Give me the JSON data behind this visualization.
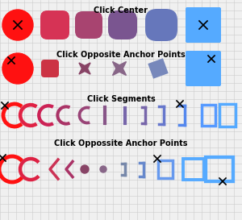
{
  "background_color": "#f0f0f0",
  "grid_color": "#cccccc",
  "title1": "Click Center",
  "title2": "Click Opposite Anchor Points",
  "title3": "Click Segments",
  "title4": "Click Oppossite Anchor Points",
  "row1_colors": [
    "#ff1111",
    "#d63355",
    "#a84470",
    "#7a5590",
    "#6677bb",
    "#55aaff"
  ],
  "row2_colors": [
    "#ff1111",
    "#cc3344",
    "#884466",
    "#886688",
    "#7788bb",
    "#55aaff"
  ],
  "row3_colors": [
    "#ff1111",
    "#dd2244",
    "#aa3366",
    "#885588",
    "#7766aa",
    "#5599ff"
  ],
  "row4_colors": [
    "#ff1111",
    "#dd2244",
    "#aa3366",
    "#885588",
    "#7766aa",
    "#5599ff"
  ]
}
